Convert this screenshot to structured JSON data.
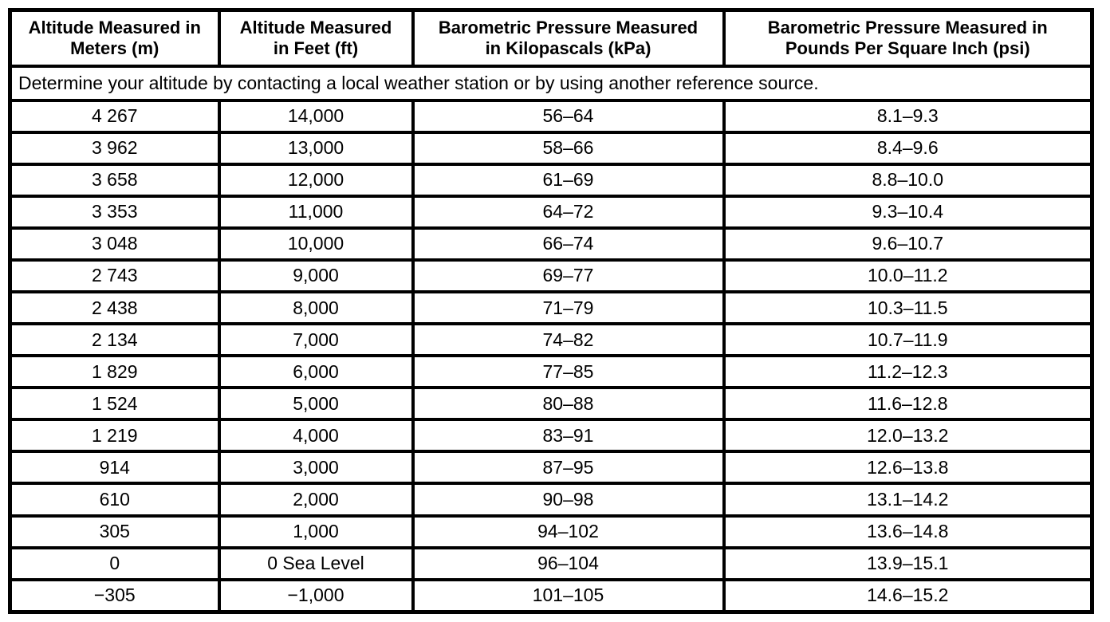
{
  "colors": {
    "border": "#000000",
    "background": "#ffffff",
    "text": "#000000"
  },
  "table": {
    "columns": [
      {
        "label": "Altitude Measured in\nMeters (m)"
      },
      {
        "label": "Altitude Measured\nin Feet (ft)"
      },
      {
        "label": "Barometric Pressure Measured\nin Kilopascals (kPa)"
      },
      {
        "label": "Barometric Pressure Measured in\nPounds Per Square Inch (psi)"
      }
    ],
    "note": "Determine your altitude by contacting a local weather station or by using another reference source.",
    "rows": [
      [
        "4 267",
        "14,000",
        "56–64",
        "8.1–9.3"
      ],
      [
        "3 962",
        "13,000",
        "58–66",
        "8.4–9.6"
      ],
      [
        "3 658",
        "12,000",
        "61–69",
        "8.8–10.0"
      ],
      [
        "3 353",
        "11,000",
        "64–72",
        "9.3–10.4"
      ],
      [
        "3 048",
        "10,000",
        "66–74",
        "9.6–10.7"
      ],
      [
        "2 743",
        "9,000",
        "69–77",
        "10.0–11.2"
      ],
      [
        "2 438",
        "8,000",
        "71–79",
        "10.3–11.5"
      ],
      [
        "2 134",
        "7,000",
        "74–82",
        "10.7–11.9"
      ],
      [
        "1 829",
        "6,000",
        "77–85",
        "11.2–12.3"
      ],
      [
        "1 524",
        "5,000",
        "80–88",
        "11.6–12.8"
      ],
      [
        "1 219",
        "4,000",
        "83–91",
        "12.0–13.2"
      ],
      [
        "914",
        "3,000",
        "87–95",
        "12.6–13.8"
      ],
      [
        "610",
        "2,000",
        "90–98",
        "13.1–14.2"
      ],
      [
        "305",
        "1,000",
        "94–102",
        "13.6–14.8"
      ],
      [
        "0",
        "0 Sea Level",
        "96–104",
        "13.9–15.1"
      ],
      [
        "−305",
        "−1,000",
        "101–105",
        "14.6–15.2"
      ]
    ]
  }
}
